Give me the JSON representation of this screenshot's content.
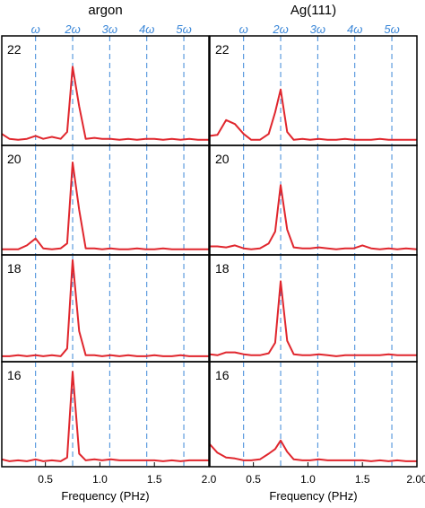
{
  "chart_data": {
    "type": "line",
    "columns": [
      {
        "title": "argon",
        "harmonic_labels": [
          "ω",
          "2ω",
          "3ω",
          "4ω",
          "5ω"
        ],
        "harmonic_x": [
          0.41,
          0.75,
          1.09,
          1.43,
          1.77
        ],
        "xlabel": "Frequency (PHz)",
        "xlim": [
          0.1,
          2.0
        ],
        "xticks": [
          "0.5",
          "1.0",
          "1.5",
          "2.0"
        ],
        "xtick_values": [
          0.5,
          1.0,
          1.5,
          2.0
        ],
        "ylim": [
          0,
          1
        ],
        "panels": [
          {
            "label": "22",
            "x": [
              0.1,
              0.17,
              0.25,
              0.33,
              0.41,
              0.48,
              0.56,
              0.64,
              0.7,
              0.75,
              0.81,
              0.87,
              0.95,
              1.02,
              1.1,
              1.18,
              1.26,
              1.34,
              1.42,
              1.5,
              1.58,
              1.66,
              1.74,
              1.82,
              1.9,
              2.0
            ],
            "y": [
              0.08,
              0.03,
              0.02,
              0.03,
              0.06,
              0.03,
              0.05,
              0.03,
              0.1,
              0.76,
              0.36,
              0.03,
              0.04,
              0.03,
              0.03,
              0.02,
              0.03,
              0.02,
              0.03,
              0.03,
              0.02,
              0.03,
              0.02,
              0.03,
              0.02,
              0.02
            ]
          },
          {
            "label": "20",
            "x": [
              0.1,
              0.17,
              0.25,
              0.33,
              0.41,
              0.48,
              0.56,
              0.64,
              0.7,
              0.75,
              0.81,
              0.87,
              0.95,
              1.02,
              1.1,
              1.18,
              1.26,
              1.34,
              1.42,
              1.5,
              1.58,
              1.66,
              1.74,
              1.82,
              1.9,
              2.0
            ],
            "y": [
              0.02,
              0.02,
              0.02,
              0.06,
              0.13,
              0.03,
              0.02,
              0.03,
              0.08,
              0.9,
              0.42,
              0.03,
              0.03,
              0.02,
              0.03,
              0.02,
              0.02,
              0.03,
              0.02,
              0.02,
              0.03,
              0.02,
              0.02,
              0.02,
              0.02,
              0.02
            ]
          },
          {
            "label": "18",
            "x": [
              0.1,
              0.17,
              0.25,
              0.33,
              0.41,
              0.48,
              0.56,
              0.64,
              0.7,
              0.75,
              0.81,
              0.87,
              0.95,
              1.02,
              1.1,
              1.18,
              1.26,
              1.34,
              1.42,
              1.5,
              1.58,
              1.66,
              1.74,
              1.82,
              1.9,
              2.0
            ],
            "y": [
              0.02,
              0.02,
              0.03,
              0.02,
              0.03,
              0.02,
              0.03,
              0.02,
              0.1,
              1.02,
              0.28,
              0.03,
              0.03,
              0.02,
              0.03,
              0.02,
              0.03,
              0.02,
              0.02,
              0.03,
              0.02,
              0.02,
              0.03,
              0.02,
              0.02,
              0.02
            ]
          },
          {
            "label": "16",
            "x": [
              0.1,
              0.17,
              0.25,
              0.33,
              0.41,
              0.48,
              0.56,
              0.64,
              0.7,
              0.75,
              0.81,
              0.87,
              0.95,
              1.02,
              1.1,
              1.18,
              1.26,
              1.34,
              1.42,
              1.5,
              1.58,
              1.66,
              1.74,
              1.82,
              1.9,
              2.0
            ],
            "y": [
              0.04,
              0.02,
              0.03,
              0.02,
              0.04,
              0.02,
              0.03,
              0.02,
              0.06,
              0.97,
              0.1,
              0.03,
              0.04,
              0.03,
              0.04,
              0.03,
              0.03,
              0.03,
              0.03,
              0.03,
              0.02,
              0.03,
              0.02,
              0.03,
              0.03,
              0.03
            ]
          }
        ]
      },
      {
        "title": "Ag(111)",
        "harmonic_labels": [
          "ω",
          "2ω",
          "3ω",
          "4ω",
          "5ω"
        ],
        "harmonic_x": [
          0.41,
          0.75,
          1.09,
          1.43,
          1.77
        ],
        "xlabel": "Frequency (PHz)",
        "xlim": [
          0.1,
          2.0
        ],
        "xticks": [
          "0.5",
          "1.0",
          "1.5",
          "2.00"
        ],
        "xtick_values": [
          0.5,
          1.0,
          1.5,
          2.0
        ],
        "ylim": [
          0,
          1
        ],
        "panels": [
          {
            "label": "22",
            "x": [
              0.1,
              0.17,
              0.25,
              0.33,
              0.41,
              0.48,
              0.56,
              0.64,
              0.7,
              0.75,
              0.81,
              0.87,
              0.95,
              1.02,
              1.1,
              1.18,
              1.26,
              1.34,
              1.42,
              1.5,
              1.58,
              1.66,
              1.74,
              1.82,
              1.9,
              2.0
            ],
            "y": [
              0.06,
              0.07,
              0.22,
              0.18,
              0.08,
              0.02,
              0.02,
              0.08,
              0.3,
              0.53,
              0.1,
              0.02,
              0.03,
              0.02,
              0.03,
              0.02,
              0.02,
              0.03,
              0.02,
              0.02,
              0.02,
              0.03,
              0.02,
              0.02,
              0.02,
              0.02
            ]
          },
          {
            "label": "20",
            "x": [
              0.1,
              0.17,
              0.25,
              0.33,
              0.41,
              0.48,
              0.56,
              0.64,
              0.7,
              0.75,
              0.81,
              0.87,
              0.95,
              1.02,
              1.1,
              1.18,
              1.26,
              1.34,
              1.42,
              1.5,
              1.58,
              1.66,
              1.74,
              1.82,
              1.9,
              2.0
            ],
            "y": [
              0.05,
              0.05,
              0.04,
              0.06,
              0.03,
              0.02,
              0.03,
              0.08,
              0.2,
              0.67,
              0.22,
              0.04,
              0.03,
              0.03,
              0.04,
              0.03,
              0.02,
              0.03,
              0.03,
              0.06,
              0.03,
              0.02,
              0.03,
              0.02,
              0.03,
              0.02
            ]
          },
          {
            "label": "18",
            "x": [
              0.1,
              0.17,
              0.25,
              0.33,
              0.41,
              0.48,
              0.56,
              0.64,
              0.7,
              0.75,
              0.81,
              0.87,
              0.95,
              1.02,
              1.1,
              1.18,
              1.26,
              1.34,
              1.42,
              1.5,
              1.58,
              1.66,
              1.74,
              1.82,
              1.9,
              2.0
            ],
            "y": [
              0.04,
              0.03,
              0.06,
              0.06,
              0.04,
              0.03,
              0.03,
              0.05,
              0.16,
              0.8,
              0.18,
              0.04,
              0.03,
              0.03,
              0.04,
              0.03,
              0.02,
              0.03,
              0.03,
              0.03,
              0.03,
              0.03,
              0.04,
              0.03,
              0.03,
              0.03
            ]
          },
          {
            "label": "16",
            "x": [
              0.1,
              0.17,
              0.25,
              0.33,
              0.41,
              0.48,
              0.56,
              0.64,
              0.7,
              0.75,
              0.81,
              0.87,
              0.95,
              1.02,
              1.1,
              1.18,
              1.26,
              1.34,
              1.42,
              1.5,
              1.58,
              1.66,
              1.74,
              1.82,
              1.9,
              2.0
            ],
            "y": [
              0.2,
              0.11,
              0.06,
              0.05,
              0.03,
              0.03,
              0.04,
              0.1,
              0.15,
              0.24,
              0.12,
              0.04,
              0.03,
              0.03,
              0.04,
              0.03,
              0.03,
              0.03,
              0.03,
              0.03,
              0.02,
              0.03,
              0.02,
              0.03,
              0.02,
              0.02
            ]
          }
        ]
      }
    ],
    "grid": false,
    "colors": {
      "line": "#e0262d",
      "harmonic": "#3b87d8",
      "frame": "#000000"
    }
  }
}
